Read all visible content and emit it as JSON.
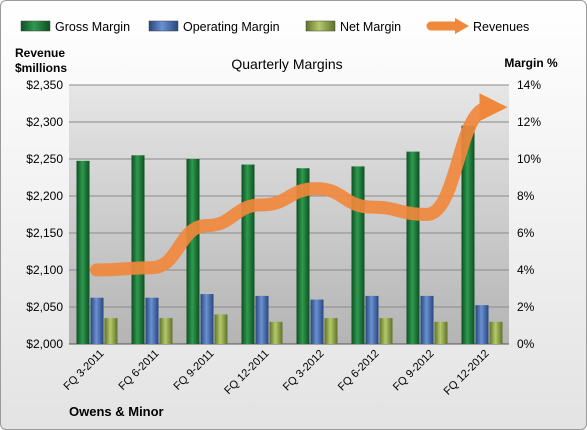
{
  "chart_data": {
    "type": "bar",
    "title": "Quarterly Margins",
    "company": "Owens & Minor",
    "left_axis_label": [
      "Revenue",
      "$millions"
    ],
    "right_axis_label": "Margin %",
    "categories": [
      "FQ 3-2011",
      "FQ 6-2011",
      "FQ 9-2011",
      "FQ 12-2011",
      "FQ 3-2012",
      "FQ 6-2012",
      "FQ 9-2012",
      "FQ 12-2012"
    ],
    "left_ylim": [
      2000,
      2350
    ],
    "left_ticks": [
      "$2,000",
      "$2,050",
      "$2,100",
      "$2,150",
      "$2,200",
      "$2,250",
      "$2,300",
      "$2,350"
    ],
    "right_ylim": [
      0,
      14
    ],
    "right_ticks": [
      "0%",
      "2%",
      "4%",
      "6%",
      "8%",
      "10%",
      "12%",
      "14%"
    ],
    "legend_position": "top",
    "grid": true,
    "series": [
      {
        "name": "Gross Margin",
        "type": "bar",
        "axis": "right",
        "color": "#1e7a3c",
        "values": [
          9.9,
          10.2,
          10.0,
          9.7,
          9.5,
          9.6,
          10.4,
          11.8
        ]
      },
      {
        "name": "Operating Margin",
        "type": "bar",
        "axis": "right",
        "color": "#3e68b0",
        "values": [
          2.5,
          2.5,
          2.7,
          2.6,
          2.4,
          2.6,
          2.6,
          2.1
        ]
      },
      {
        "name": "Net Margin",
        "type": "bar",
        "axis": "right",
        "color": "#8fa64a",
        "values": [
          1.4,
          1.4,
          1.6,
          1.2,
          1.4,
          1.4,
          1.2,
          1.2
        ]
      },
      {
        "name": "Revenues",
        "type": "line",
        "axis": "left",
        "color": "#f0883c",
        "values": [
          2100,
          2103,
          2160,
          2188,
          2210,
          2185,
          2175,
          2320
        ]
      }
    ]
  }
}
